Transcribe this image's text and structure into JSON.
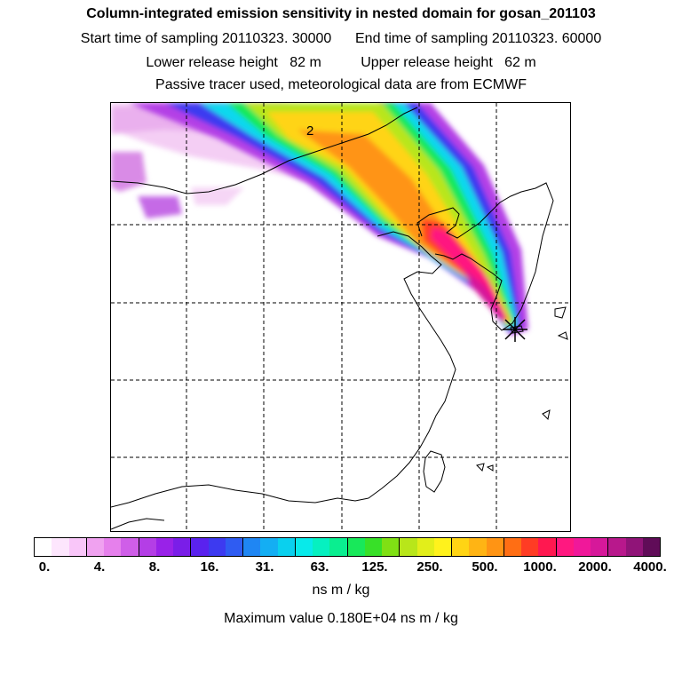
{
  "header": {
    "title": "Column-integrated emission sensitivity in nested domain for gosan_201103",
    "sampling_line": "Start time of sampling 20110323. 30000      End time of sampling 20110323. 60000",
    "release_line": "Lower release height   82 m          Upper release height   62 m",
    "tracer_line": "Passive tracer used, meteorological data are from ECMWF"
  },
  "map": {
    "label_2": "2",
    "release_marker": "release-site-star"
  },
  "colorbar": {
    "colors": [
      "#ffffff",
      "#fde6fd",
      "#f9c6f9",
      "#f0a2f0",
      "#e680ec",
      "#cf5ee8",
      "#b43ee6",
      "#9922e8",
      "#7a1ee8",
      "#5a22ee",
      "#3d3af0",
      "#2f5cf2",
      "#1f86f3",
      "#14aef3",
      "#0ad0ee",
      "#08eaea",
      "#06f0c0",
      "#0aee90",
      "#18e85a",
      "#38e028",
      "#80e014",
      "#b8e61a",
      "#e2ee1a",
      "#fff21c",
      "#ffd414",
      "#ffb414",
      "#ff9414",
      "#ff6e14",
      "#ff3c24",
      "#ff1850",
      "#ff1880",
      "#f0189a",
      "#d6189a",
      "#b8188c",
      "#901478",
      "#600c58"
    ],
    "tick_labels": [
      "0.",
      "4.",
      "8.",
      "16.",
      "31.",
      "63.",
      "125.",
      "250.",
      "500.",
      "1000.",
      "2000.",
      "4000."
    ]
  },
  "units": "ns m / kg",
  "max_value_text": "Maximum value  0.180E+04 ns m / kg"
}
